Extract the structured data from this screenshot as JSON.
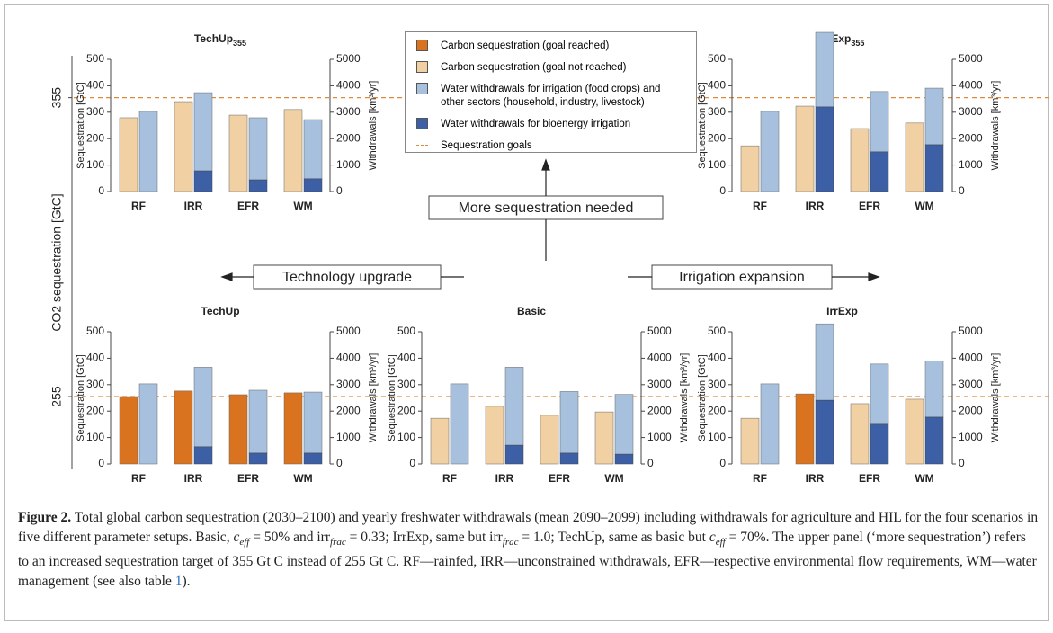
{
  "legend": [
    {
      "name": "Carbon sequestration (goal reached)",
      "color": "#d9731f"
    },
    {
      "name": "Carbon sequestration (goal not reached)",
      "color": "#f1d1a4"
    },
    {
      "name": "Water withdrawals for irrigation (food crops) and other sectors (household, industry, livestock)",
      "color": "#a7c0dd"
    },
    {
      "name": "Water withdrawals for bioenergy irrigation",
      "color": "#3d5fa6"
    },
    {
      "name": "Sequestration goals",
      "color": "#e08a3c"
    }
  ],
  "co2_axis_label": "CO2 sequestration [GtC]",
  "annotations": {
    "up": "More sequestration needed",
    "left": "Technology upgrade",
    "right": "Irrigation expansion"
  },
  "chart_data": [
    {
      "type": "bar",
      "title": "TechUp",
      "title_subscript": "355",
      "goal": 355,
      "categories": [
        "RF",
        "IRR",
        "EFR",
        "WM"
      ],
      "ylabel": "Sequestration [GtC]",
      "y2label": "Withdrawals [km³/yr]",
      "ylim": [
        0,
        500
      ],
      "yticks": [
        0,
        100,
        200,
        300,
        400,
        500
      ],
      "y2lim": [
        0,
        5000
      ],
      "y2ticks": [
        0,
        1000,
        2000,
        3000,
        4000,
        5000
      ],
      "sequestration": [
        279,
        340,
        289,
        310
      ],
      "goal_reached": [
        false,
        false,
        false,
        false
      ],
      "withdrawals_bioenergy": [
        0,
        780,
        440,
        480
      ],
      "withdrawals_other": [
        3030,
        2960,
        2350,
        2240
      ]
    },
    {
      "type": "bar",
      "title": "IrrExp",
      "title_subscript": "355",
      "goal": 355,
      "categories": [
        "RF",
        "IRR",
        "EFR",
        "WM"
      ],
      "ylabel": "Sequestration [GtC]",
      "y2label": "Withdrawals [km³/yr]",
      "ylim": [
        0,
        500
      ],
      "yticks": [
        0,
        100,
        200,
        300,
        400,
        500
      ],
      "y2lim": [
        0,
        5000
      ],
      "y2ticks": [
        0,
        1000,
        2000,
        3000,
        4000,
        5000
      ],
      "sequestration": [
        173,
        323,
        238,
        259
      ],
      "goal_reached": [
        false,
        false,
        false,
        false
      ],
      "withdrawals_bioenergy": [
        0,
        3200,
        1500,
        1770
      ],
      "withdrawals_other": [
        3030,
        2820,
        2280,
        2140
      ]
    },
    {
      "type": "bar",
      "title": "TechUp",
      "goal": 255,
      "categories": [
        "RF",
        "IRR",
        "EFR",
        "WM"
      ],
      "ylabel": "Sequestration [GtC]",
      "y2label": "Withdrawals [km³/yr]",
      "ylim": [
        0,
        500
      ],
      "yticks": [
        0,
        100,
        200,
        300,
        400,
        500
      ],
      "y2lim": [
        0,
        5000
      ],
      "y2ticks": [
        0,
        1000,
        2000,
        3000,
        4000,
        5000
      ],
      "sequestration": [
        255,
        276,
        262,
        269
      ],
      "goal_reached": [
        true,
        true,
        true,
        true
      ],
      "withdrawals_bioenergy": [
        0,
        650,
        410,
        410
      ],
      "withdrawals_other": [
        3030,
        3010,
        2380,
        2310
      ]
    },
    {
      "type": "bar",
      "title": "Basic",
      "goal": 255,
      "categories": [
        "RF",
        "IRR",
        "EFR",
        "WM"
      ],
      "ylabel": "Sequestration [GtC]",
      "y2label": "Withdrawals [km³/yr]",
      "ylim": [
        0,
        500
      ],
      "yticks": [
        0,
        100,
        200,
        300,
        400,
        500
      ],
      "y2lim": [
        0,
        5000
      ],
      "y2ticks": [
        0,
        1000,
        2000,
        3000,
        4000,
        5000
      ],
      "sequestration": [
        173,
        218,
        184,
        197
      ],
      "goal_reached": [
        false,
        false,
        false,
        false
      ],
      "withdrawals_bioenergy": [
        0,
        710,
        410,
        370
      ],
      "withdrawals_other": [
        3030,
        2950,
        2330,
        2260
      ]
    },
    {
      "type": "bar",
      "title": "IrrExp",
      "goal": 255,
      "categories": [
        "RF",
        "IRR",
        "EFR",
        "WM"
      ],
      "ylabel": "Sequestration [GtC]",
      "y2label": "Withdrawals [km³/yr]",
      "ylim": [
        0,
        500
      ],
      "yticks": [
        0,
        100,
        200,
        300,
        400,
        500
      ],
      "y2lim": [
        0,
        5000
      ],
      "y2ticks": [
        0,
        1000,
        2000,
        3000,
        4000,
        5000
      ],
      "sequestration": [
        173,
        265,
        228,
        245
      ],
      "goal_reached": [
        false,
        true,
        false,
        false
      ],
      "withdrawals_bioenergy": [
        0,
        2410,
        1500,
        1770
      ],
      "withdrawals_other": [
        3030,
        2890,
        2280,
        2130
      ]
    }
  ],
  "caption": [
    {
      "text": "Figure 2.",
      "style": "b"
    },
    {
      "text": " Total global carbon sequestration (2030–2100) and yearly freshwater withdrawals (mean 2090–2099) including withdrawals for agriculture and HIL for the four scenarios in five different parameter setups. Basic, "
    },
    {
      "text": "c",
      "style": "i"
    },
    {
      "text": "eff",
      "style": "isub"
    },
    {
      "text": " = 50% and irr"
    },
    {
      "text": "frac",
      "style": "isub"
    },
    {
      "text": " = 0.33; IrrExp, same but irr"
    },
    {
      "text": "frac",
      "style": "isub"
    },
    {
      "text": " = 1.0; TechUp, same as basic but "
    },
    {
      "text": "c",
      "style": "i"
    },
    {
      "text": "eff",
      "style": "isub"
    },
    {
      "text": " = 70%. The upper panel (‘more sequestration’) refers to an increased sequestration target of 355 Gt C instead of 255 Gt C. RF—rainfed, IRR—unconstrained withdrawals, EFR—respective environmental flow requirements, WM—water management (see also table "
    },
    {
      "text": "1",
      "style": "link"
    },
    {
      "text": ")."
    }
  ]
}
